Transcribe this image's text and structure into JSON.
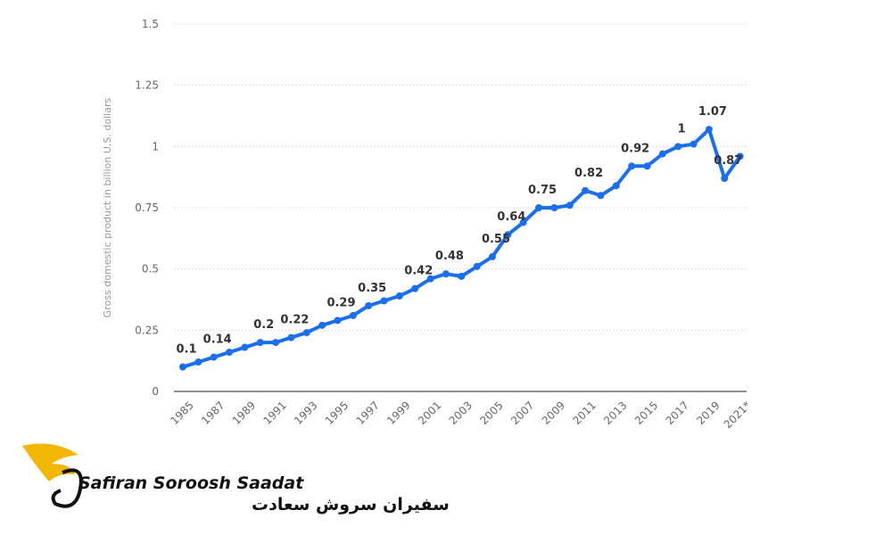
{
  "chart_data": {
    "type": "line",
    "y_label": "Gross domestic product in billion U.S. dollars",
    "categories": [
      "1985",
      null,
      "1987",
      null,
      "1989",
      null,
      "1991",
      null,
      "1993",
      null,
      "1995",
      null,
      "1997",
      null,
      "1999",
      null,
      "2001",
      null,
      "2003",
      null,
      "2005",
      null,
      "2007",
      null,
      "2009",
      null,
      "2011",
      null,
      "2013",
      null,
      "2015",
      null,
      "2017",
      null,
      "2019",
      null,
      "2021*"
    ],
    "series": [
      {
        "name": "GDP",
        "color": "#1a6ff0",
        "values": [
          0.1,
          0.12,
          0.14,
          0.16,
          0.18,
          0.2,
          0.2,
          0.22,
          0.24,
          0.27,
          0.29,
          0.31,
          0.35,
          0.37,
          0.39,
          0.42,
          0.46,
          0.48,
          0.47,
          0.51,
          0.55,
          0.64,
          0.69,
          0.75,
          0.75,
          0.76,
          0.82,
          0.8,
          0.84,
          0.92,
          0.92,
          0.97,
          1.0,
          1.01,
          1.07,
          0.87,
          0.96
        ],
        "value_labels": [
          "0.1",
          null,
          "0.14",
          null,
          null,
          "0.2",
          null,
          "0.22",
          null,
          null,
          "0.29",
          null,
          "0.35",
          null,
          null,
          "0.42",
          null,
          "0.48",
          null,
          null,
          "0.55",
          "0.64",
          null,
          "0.75",
          null,
          null,
          "0.82",
          null,
          null,
          "0.92",
          null,
          null,
          "1",
          null,
          "1.07",
          "0.87",
          null
        ]
      }
    ],
    "ylim": [
      0,
      1.5
    ],
    "yticks": [
      0,
      0.25,
      0.5,
      0.75,
      1,
      1.25,
      1.5
    ],
    "grid": true
  },
  "logo": {
    "latin": "Safiran Soroosh Saadat",
    "persian": "سفیران سروش سعادت"
  }
}
